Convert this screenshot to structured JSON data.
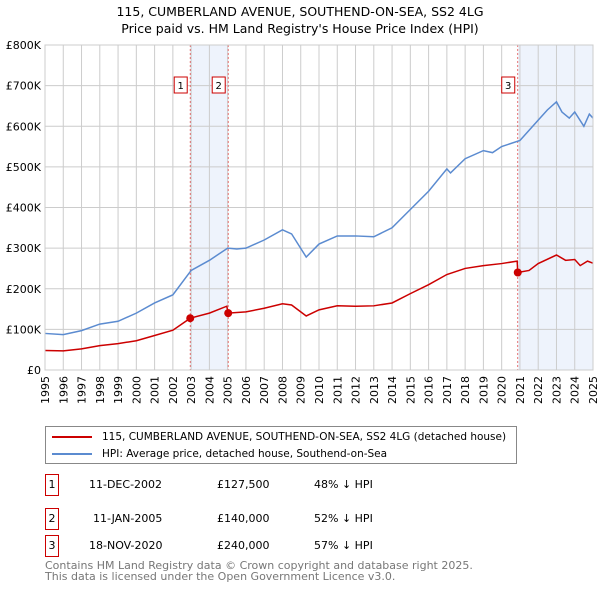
{
  "chart_data": {
    "type": "line",
    "title": "115, CUMBERLAND AVENUE, SOUTHEND-ON-SEA, SS2 4LG",
    "subtitle": "Price paid vs. HM Land Registry's House Price Index (HPI)",
    "xlim": [
      1995,
      2025
    ],
    "ylim": [
      0,
      800000
    ],
    "y_ticks": [
      {
        "v": 0,
        "label": "£0"
      },
      {
        "v": 100000,
        "label": "£100K"
      },
      {
        "v": 200000,
        "label": "£200K"
      },
      {
        "v": 300000,
        "label": "£300K"
      },
      {
        "v": 400000,
        "label": "£400K"
      },
      {
        "v": 500000,
        "label": "£500K"
      },
      {
        "v": 600000,
        "label": "£600K"
      },
      {
        "v": 700000,
        "label": "£700K"
      },
      {
        "v": 800000,
        "label": "£800K"
      }
    ],
    "x_ticks": [
      "1995",
      "1996",
      "1997",
      "1998",
      "1999",
      "2000",
      "2001",
      "2002",
      "2003",
      "2004",
      "2005",
      "2006",
      "2007",
      "2008",
      "2009",
      "2010",
      "2011",
      "2012",
      "2013",
      "2014",
      "2015",
      "2016",
      "2017",
      "2018",
      "2019",
      "2020",
      "2021",
      "2022",
      "2023",
      "2024",
      "2025"
    ],
    "grid": true,
    "series": [
      {
        "name": "115, CUMBERLAND AVENUE, SOUTHEND-ON-SEA, SS2 4LG (detached house)",
        "color": "#cc0000",
        "x": [
          1995,
          1996,
          1997,
          1998,
          1999,
          2000,
          2001,
          2002,
          2002.95,
          2004,
          2004.95,
          2005.03,
          2006,
          2007,
          2008,
          2008.5,
          2009.3,
          2010,
          2011,
          2012,
          2013,
          2014,
          2015,
          2016,
          2017,
          2018,
          2019,
          2020,
          2020.85,
          2020.88,
          2021.5,
          2022,
          2023,
          2023.5,
          2024,
          2024.3,
          2024.7,
          2025
        ],
        "y": [
          48000,
          47000,
          52000,
          60000,
          65000,
          72000,
          85000,
          98000,
          127500,
          140000,
          157000,
          140000,
          143000,
          152000,
          163000,
          160000,
          133000,
          148000,
          158000,
          157000,
          158000,
          165000,
          188000,
          210000,
          235000,
          250000,
          257000,
          262000,
          268000,
          240000,
          245000,
          262000,
          283000,
          270000,
          272000,
          257000,
          268000,
          263000
        ]
      },
      {
        "name": "HPI: Average price, detached house, Southend-on-Sea",
        "color": "#5b8bd0",
        "x": [
          1995,
          1996,
          1997,
          1998,
          1999,
          2000,
          2001,
          2002,
          2003,
          2004,
          2005,
          2005.5,
          2006,
          2007,
          2008,
          2008.5,
          2009.3,
          2010,
          2011,
          2012,
          2013,
          2014,
          2015,
          2016,
          2017,
          2017.2,
          2018,
          2019,
          2019.5,
          2020,
          2021,
          2022,
          2022.5,
          2023,
          2023.3,
          2023.7,
          2024,
          2024.5,
          2024.8,
          2025
        ],
        "y": [
          90000,
          87000,
          97000,
          113000,
          120000,
          140000,
          165000,
          185000,
          245000,
          270000,
          300000,
          298000,
          300000,
          320000,
          345000,
          335000,
          278000,
          310000,
          330000,
          330000,
          328000,
          350000,
          395000,
          440000,
          495000,
          485000,
          520000,
          540000,
          535000,
          550000,
          565000,
          615000,
          640000,
          660000,
          635000,
          620000,
          635000,
          600000,
          630000,
          620000
        ]
      }
    ],
    "sales": [
      {
        "id": "1",
        "x": 2002.95,
        "y": 127500,
        "date": "11-DEC-2002",
        "price": "£127,500",
        "hpi": "48% ↓ HPI"
      },
      {
        "id": "2",
        "x": 2005.03,
        "y": 140000,
        "date": "11-JAN-2005",
        "price": "£140,000",
        "hpi": "52% ↓ HPI"
      },
      {
        "id": "3",
        "x": 2020.88,
        "y": 240000,
        "date": "18-NOV-2020",
        "price": "£240,000",
        "hpi": "57% ↓ HPI"
      }
    ],
    "shaded": [
      [
        2002.95,
        2005.03
      ],
      [
        2020.88,
        2025
      ]
    ]
  },
  "footer": {
    "line1": "Contains HM Land Registry data © Crown copyright and database right 2025.",
    "line2": "This data is licensed under the Open Government Licence v3.0."
  }
}
